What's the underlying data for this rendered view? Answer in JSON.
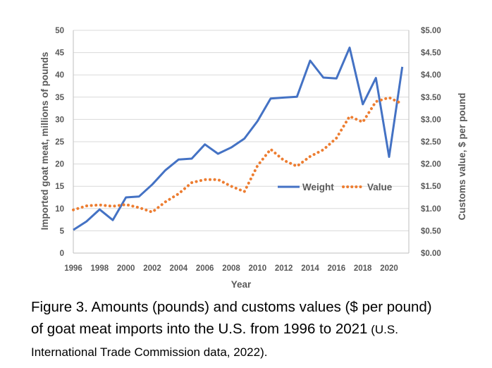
{
  "chart_data": {
    "type": "line",
    "xlabel": "Year",
    "ylabel": "Imported goat meat, millions of pounds",
    "y2label": "Customs value, $ per pound",
    "x": [
      1996,
      1997,
      1998,
      1999,
      2000,
      2001,
      2002,
      2003,
      2004,
      2005,
      2006,
      2007,
      2008,
      2009,
      2010,
      2011,
      2012,
      2013,
      2014,
      2015,
      2016,
      2017,
      2018,
      2019,
      2020,
      2021
    ],
    "xticks": [
      1996,
      1998,
      2000,
      2002,
      2004,
      2006,
      2008,
      2010,
      2012,
      2014,
      2016,
      2018,
      2020
    ],
    "xtick_labels": [
      "1996",
      "1998",
      "2000",
      "2002",
      "2004",
      "2006",
      "2008",
      "2010",
      "2012",
      "2014",
      "2016",
      "2018",
      "2020"
    ],
    "xlim": [
      1996,
      2021.5
    ],
    "ylim": [
      0,
      50
    ],
    "y2lim": [
      0,
      5
    ],
    "yticks": [
      0,
      5,
      10,
      15,
      20,
      25,
      30,
      35,
      40,
      45,
      50
    ],
    "ytick_labels": [
      "0",
      "5",
      "10",
      "15",
      "20",
      "25",
      "30",
      "35",
      "40",
      "45",
      "50"
    ],
    "y2ticks": [
      0,
      0.5,
      1,
      1.5,
      2,
      2.5,
      3,
      3.5,
      4,
      4.5,
      5
    ],
    "y2tick_labels": [
      "$0.00",
      "$0.50",
      "$1.00",
      "$1.50",
      "$2.00",
      "$2.50",
      "$3.00",
      "$3.50",
      "$4.00",
      "$4.50",
      "$5.00"
    ],
    "grid": true,
    "legend_position": "right",
    "series": [
      {
        "name": "Weight",
        "axis": "left",
        "style": "solid",
        "color": "#4472C4",
        "values": [
          5.2,
          7.1,
          9.8,
          7.4,
          12.5,
          12.7,
          15.4,
          18.6,
          21.0,
          21.2,
          24.4,
          22.3,
          23.7,
          25.7,
          29.6,
          34.7,
          34.9,
          35.1,
          43.2,
          39.4,
          39.2,
          46.1,
          33.4,
          39.3,
          21.6,
          41.8
        ]
      },
      {
        "name": "Value",
        "axis": "right",
        "style": "dotted",
        "color": "#ED7D31",
        "values": [
          0.97,
          1.06,
          1.08,
          1.05,
          1.09,
          1.02,
          0.92,
          1.15,
          1.33,
          1.58,
          1.65,
          1.65,
          1.5,
          1.38,
          1.96,
          2.33,
          2.08,
          1.95,
          2.17,
          2.32,
          2.58,
          3.07,
          2.94,
          3.4,
          3.49,
          3.35
        ]
      }
    ]
  },
  "caption": {
    "line1": "Figure 3. Amounts (pounds) and customs values ($ per pound)",
    "line2_main": "of goat meat imports into the U.S. from 1996 to 2021",
    "line2_source": " (U.S.",
    "line3": "International Trade Commission data, 2022)."
  }
}
